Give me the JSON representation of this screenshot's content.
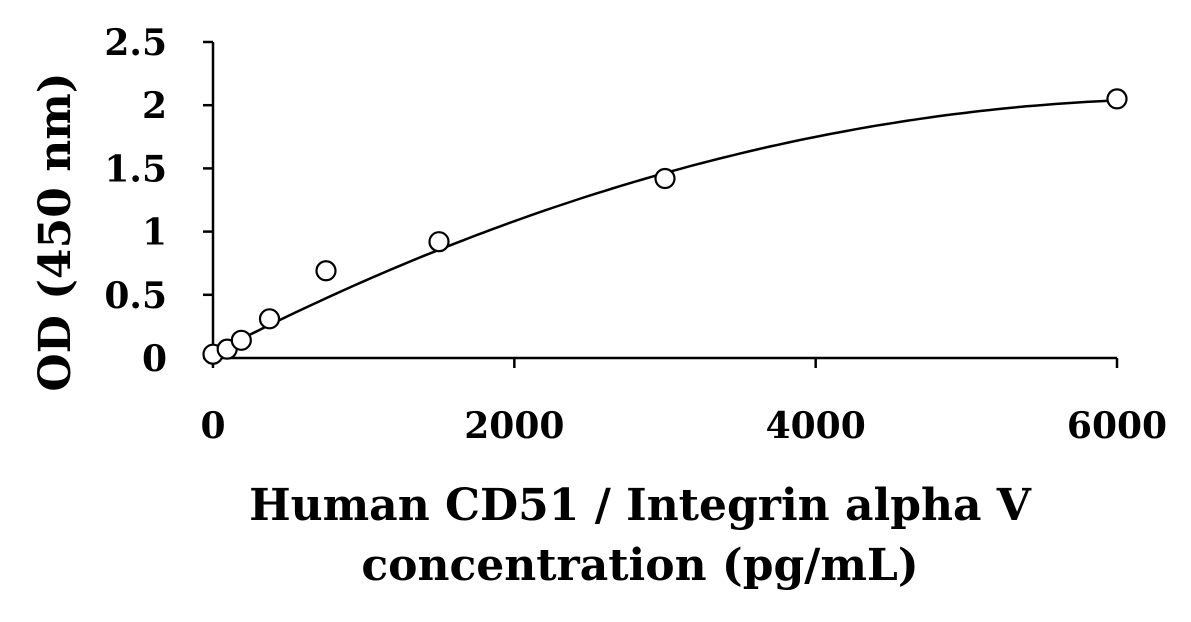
{
  "chart_data": {
    "type": "scatter",
    "title": "",
    "xlabel_lines": [
      "Human CD51 / Integrin alpha V",
      "concentration (pg/mL)"
    ],
    "ylabel": "OD (450 nm)",
    "xlim": [
      0,
      6000
    ],
    "ylim": [
      0,
      2.5
    ],
    "xticks": [
      0,
      2000,
      4000,
      6000
    ],
    "xtick_labels": [
      "0",
      "2000",
      "4000",
      "6000"
    ],
    "yticks": [
      0,
      0.5,
      1,
      1.5,
      2,
      2.5
    ],
    "ytick_labels": [
      "0",
      "0.5",
      "1",
      "1.5",
      "2",
      "2.5"
    ],
    "grid": false,
    "legend": "none",
    "series": [
      {
        "marker": "open-circle",
        "x": [
          0,
          94,
          188,
          375,
          750,
          1500,
          3000,
          6000
        ],
        "y": [
          0.03,
          0.07,
          0.14,
          0.31,
          0.69,
          0.92,
          1.42,
          2.05
        ]
      }
    ],
    "fit": {
      "type": "polynomial-2",
      "coefficients": [
        0.036,
        0.000618,
        -4.74e-08
      ]
    }
  }
}
